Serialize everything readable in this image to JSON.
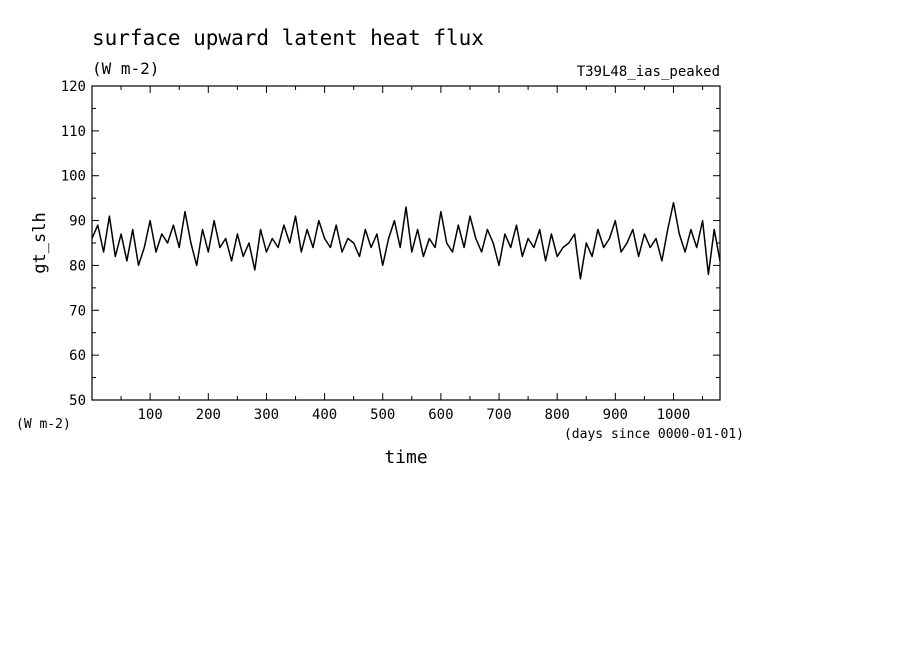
{
  "chart_data": {
    "type": "line",
    "title": "surface upward latent heat flux",
    "units_label": "(W m-2)",
    "run_label": "T39L48_ias_peaked",
    "xlabel": "time",
    "x_units": "(days since 0000-01-01)",
    "ylabel": "gt_slh",
    "y_units": "(W m-2)",
    "xlim": [
      0,
      1080
    ],
    "ylim": [
      50,
      120
    ],
    "x_ticks": [
      100,
      200,
      300,
      400,
      500,
      600,
      700,
      800,
      900,
      1000
    ],
    "y_ticks": [
      50,
      60,
      70,
      80,
      90,
      100,
      110,
      120
    ],
    "grid": false,
    "series": [
      {
        "x": [
          0,
          10,
          20,
          30,
          40,
          50,
          60,
          70,
          80,
          90,
          100,
          110,
          120,
          130,
          140,
          150,
          160,
          170,
          180,
          190,
          200,
          210,
          220,
          230,
          240,
          250,
          260,
          270,
          280,
          290,
          300,
          310,
          320,
          330,
          340,
          350,
          360,
          370,
          380,
          390,
          400,
          410,
          420,
          430,
          440,
          450,
          460,
          470,
          480,
          490,
          500,
          510,
          520,
          530,
          540,
          550,
          560,
          570,
          580,
          590,
          600,
          610,
          620,
          630,
          640,
          650,
          660,
          670,
          680,
          690,
          700,
          710,
          720,
          730,
          740,
          750,
          760,
          770,
          780,
          790,
          800,
          810,
          820,
          830,
          840,
          850,
          860,
          870,
          880,
          890,
          900,
          910,
          920,
          930,
          940,
          950,
          960,
          970,
          980,
          990,
          1000,
          1010,
          1020,
          1030,
          1040,
          1050,
          1060,
          1070,
          1080
        ],
        "y": [
          86,
          89,
          83,
          91,
          82,
          87,
          81,
          88,
          80,
          84,
          90,
          83,
          87,
          85,
          89,
          84,
          92,
          85,
          80,
          88,
          83,
          90,
          84,
          86,
          81,
          87,
          82,
          85,
          79,
          88,
          83,
          86,
          84,
          89,
          85,
          91,
          83,
          88,
          84,
          90,
          86,
          84,
          89,
          83,
          86,
          85,
          82,
          88,
          84,
          87,
          80,
          86,
          90,
          84,
          93,
          83,
          88,
          82,
          86,
          84,
          92,
          85,
          83,
          89,
          84,
          91,
          86,
          83,
          88,
          85,
          80,
          87,
          84,
          89,
          82,
          86,
          84,
          88,
          81,
          87,
          82,
          84,
          85,
          87,
          77,
          85,
          82,
          88,
          84,
          86,
          90,
          83,
          85,
          88,
          82,
          87,
          84,
          86,
          81,
          88,
          94,
          87,
          83,
          88,
          84,
          90,
          78,
          88,
          81
        ]
      }
    ]
  }
}
